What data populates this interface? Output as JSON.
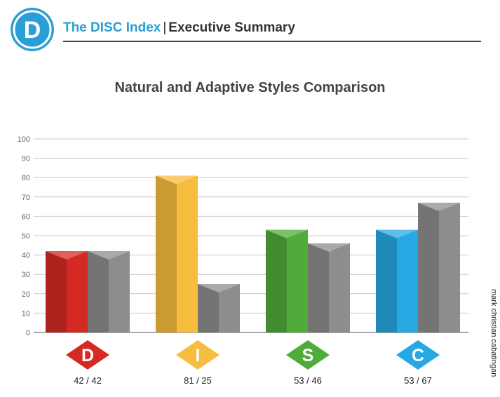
{
  "header": {
    "logo_letter": "D",
    "brand_name": "The DISC Index",
    "separator": "|",
    "page_title": "Executive Summary"
  },
  "credit": "mark christian cabatingan",
  "colors": {
    "brand_blue": "#2a9fd6",
    "D": "#d42a23",
    "I": "#f6bd3e",
    "S": "#4fab3a",
    "C": "#26a8e3",
    "adaptive_gray": "#8d8d8d"
  },
  "chart_data": {
    "type": "bar",
    "title": "Natural and Adaptive Styles Comparison",
    "categories": [
      "D",
      "I",
      "S",
      "C"
    ],
    "series": [
      {
        "values": [
          42,
          81,
          53,
          53
        ]
      },
      {
        "values": [
          42,
          25,
          46,
          67
        ]
      }
    ],
    "value_labels": [
      "42 / 42",
      "81 / 25",
      "53 / 46",
      "53 / 67"
    ],
    "ylim": [
      0,
      100
    ],
    "yticks": [
      0,
      10,
      20,
      30,
      40,
      50,
      60,
      70,
      80,
      90,
      100
    ],
    "grid": true,
    "legend": "none"
  }
}
